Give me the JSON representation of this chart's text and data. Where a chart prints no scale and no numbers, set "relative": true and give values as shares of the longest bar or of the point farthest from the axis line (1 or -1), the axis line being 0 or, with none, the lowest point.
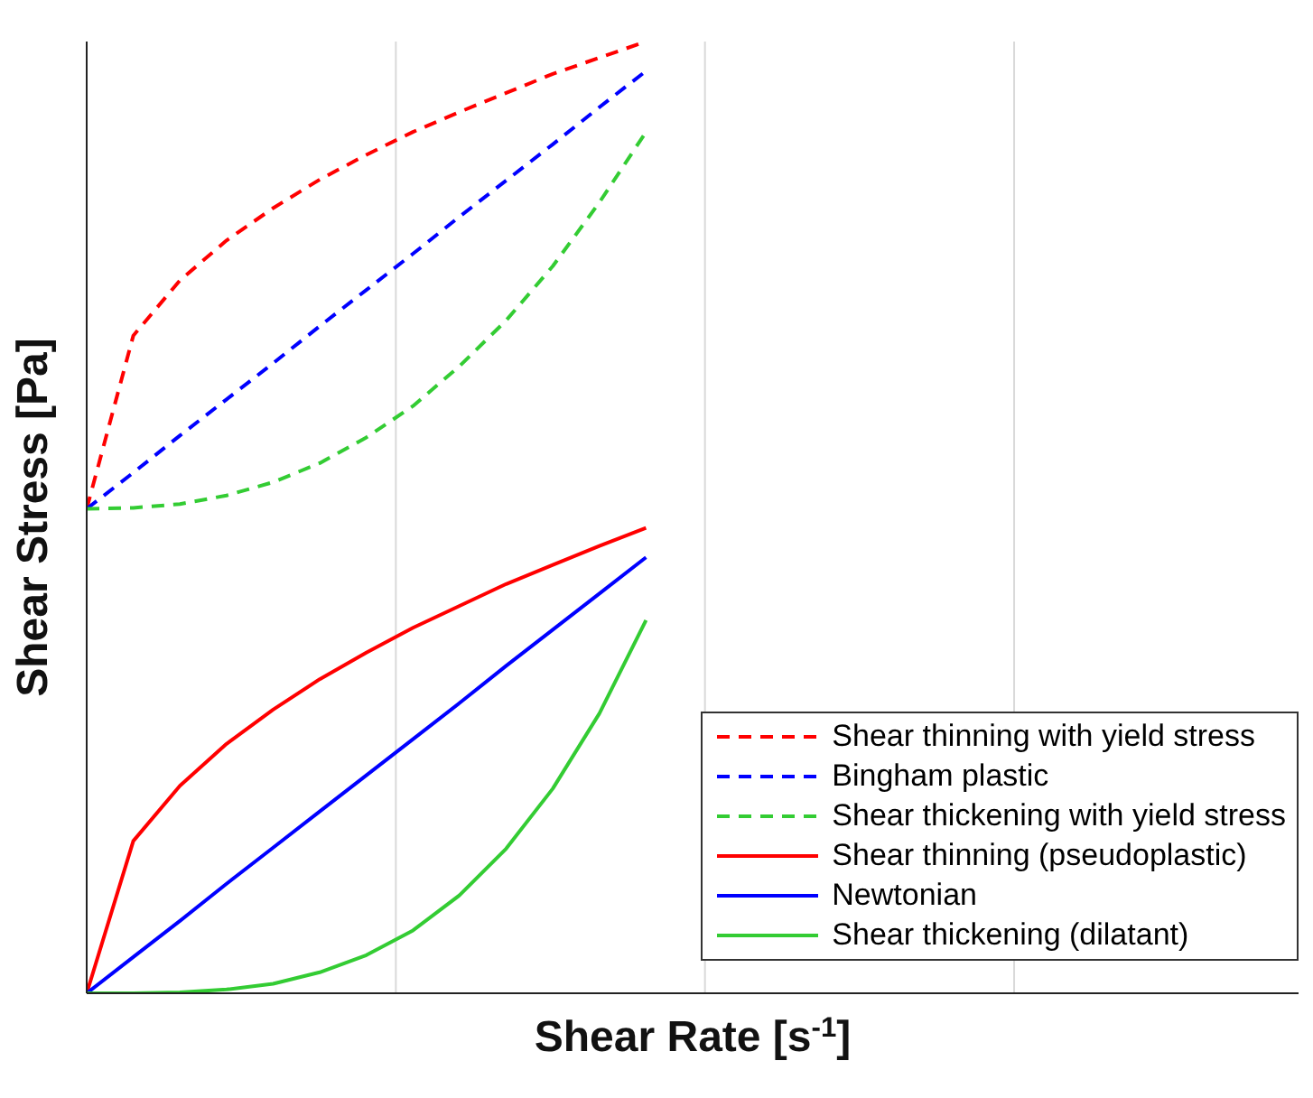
{
  "chart_data": {
    "type": "line",
    "relative": true,
    "xlabel": "Shear  Rate  [s$^{-1}$]",
    "ylabel": "Shear Stress [Pa]",
    "grid": "x",
    "legend": "bottom right",
    "marker": "none",
    "categories": [
      null,
      null,
      null,
      null,
      null,
      null,
      null,
      null,
      null,
      null,
      null,
      null,
      null,
      null,
      null,
      null,
      null,
      null,
      null,
      null,
      null,
      null,
      null,
      null,
      null,
      null,
      null
    ],
    "series": [
      {
        "name": "Shear thinning with yield stress",
        "color": "#ff0000",
        "line_style": "dashed",
        "values": [
          0.509,
          0.691,
          0.749,
          0.791,
          0.825,
          0.855,
          0.881,
          0.905,
          0.926,
          0.946,
          0.966,
          0.983,
          1.0,
          null,
          null,
          null,
          null,
          null,
          null,
          null,
          null,
          null,
          null,
          null,
          null,
          null,
          null
        ]
      },
      {
        "name": "Bingham plastic",
        "color": "#0000ff",
        "line_style": "dashed",
        "values": [
          0.509,
          0.547,
          0.586,
          0.624,
          0.662,
          0.701,
          0.739,
          0.777,
          0.816,
          0.854,
          0.892,
          0.931,
          0.969,
          null,
          null,
          null,
          null,
          null,
          null,
          null,
          null,
          null,
          null,
          null,
          null,
          null,
          null
        ]
      },
      {
        "name": "Shear thickening with yield stress",
        "color": "#33cc33",
        "line_style": "dashed",
        "values": [
          0.509,
          0.51,
          0.514,
          0.523,
          0.537,
          0.557,
          0.584,
          0.617,
          0.659,
          0.707,
          0.764,
          0.831,
          0.905,
          null,
          null,
          null,
          null,
          null,
          null,
          null,
          null,
          null,
          null,
          null,
          null,
          null,
          null
        ]
      },
      {
        "name": "Shear thinning (pseudoplastic)",
        "color": "#ff0000",
        "line_style": "solid",
        "values": [
          0,
          0.16,
          0.218,
          0.262,
          0.298,
          0.33,
          0.358,
          0.384,
          0.407,
          0.43,
          0.45,
          0.47,
          0.489,
          null,
          null,
          null,
          null,
          null,
          null,
          null,
          null,
          null,
          null,
          null,
          null,
          null,
          null
        ]
      },
      {
        "name": "Newtonian",
        "color": "#0000ff",
        "line_style": "solid",
        "values": [
          0,
          0.038,
          0.076,
          0.115,
          0.153,
          0.191,
          0.229,
          0.267,
          0.305,
          0.344,
          0.382,
          0.42,
          0.458,
          null,
          null,
          null,
          null,
          null,
          null,
          null,
          null,
          null,
          null,
          null,
          null,
          null,
          null
        ]
      },
      {
        "name": "Shear thickening (dilatant)",
        "color": "#33cc33",
        "line_style": "solid",
        "values": [
          0,
          0,
          0.001,
          0.004,
          0.01,
          0.022,
          0.04,
          0.066,
          0.103,
          0.152,
          0.215,
          0.294,
          0.392,
          null,
          null,
          null,
          null,
          null,
          null,
          null,
          null,
          null,
          null,
          null,
          null,
          null,
          null
        ]
      }
    ]
  }
}
